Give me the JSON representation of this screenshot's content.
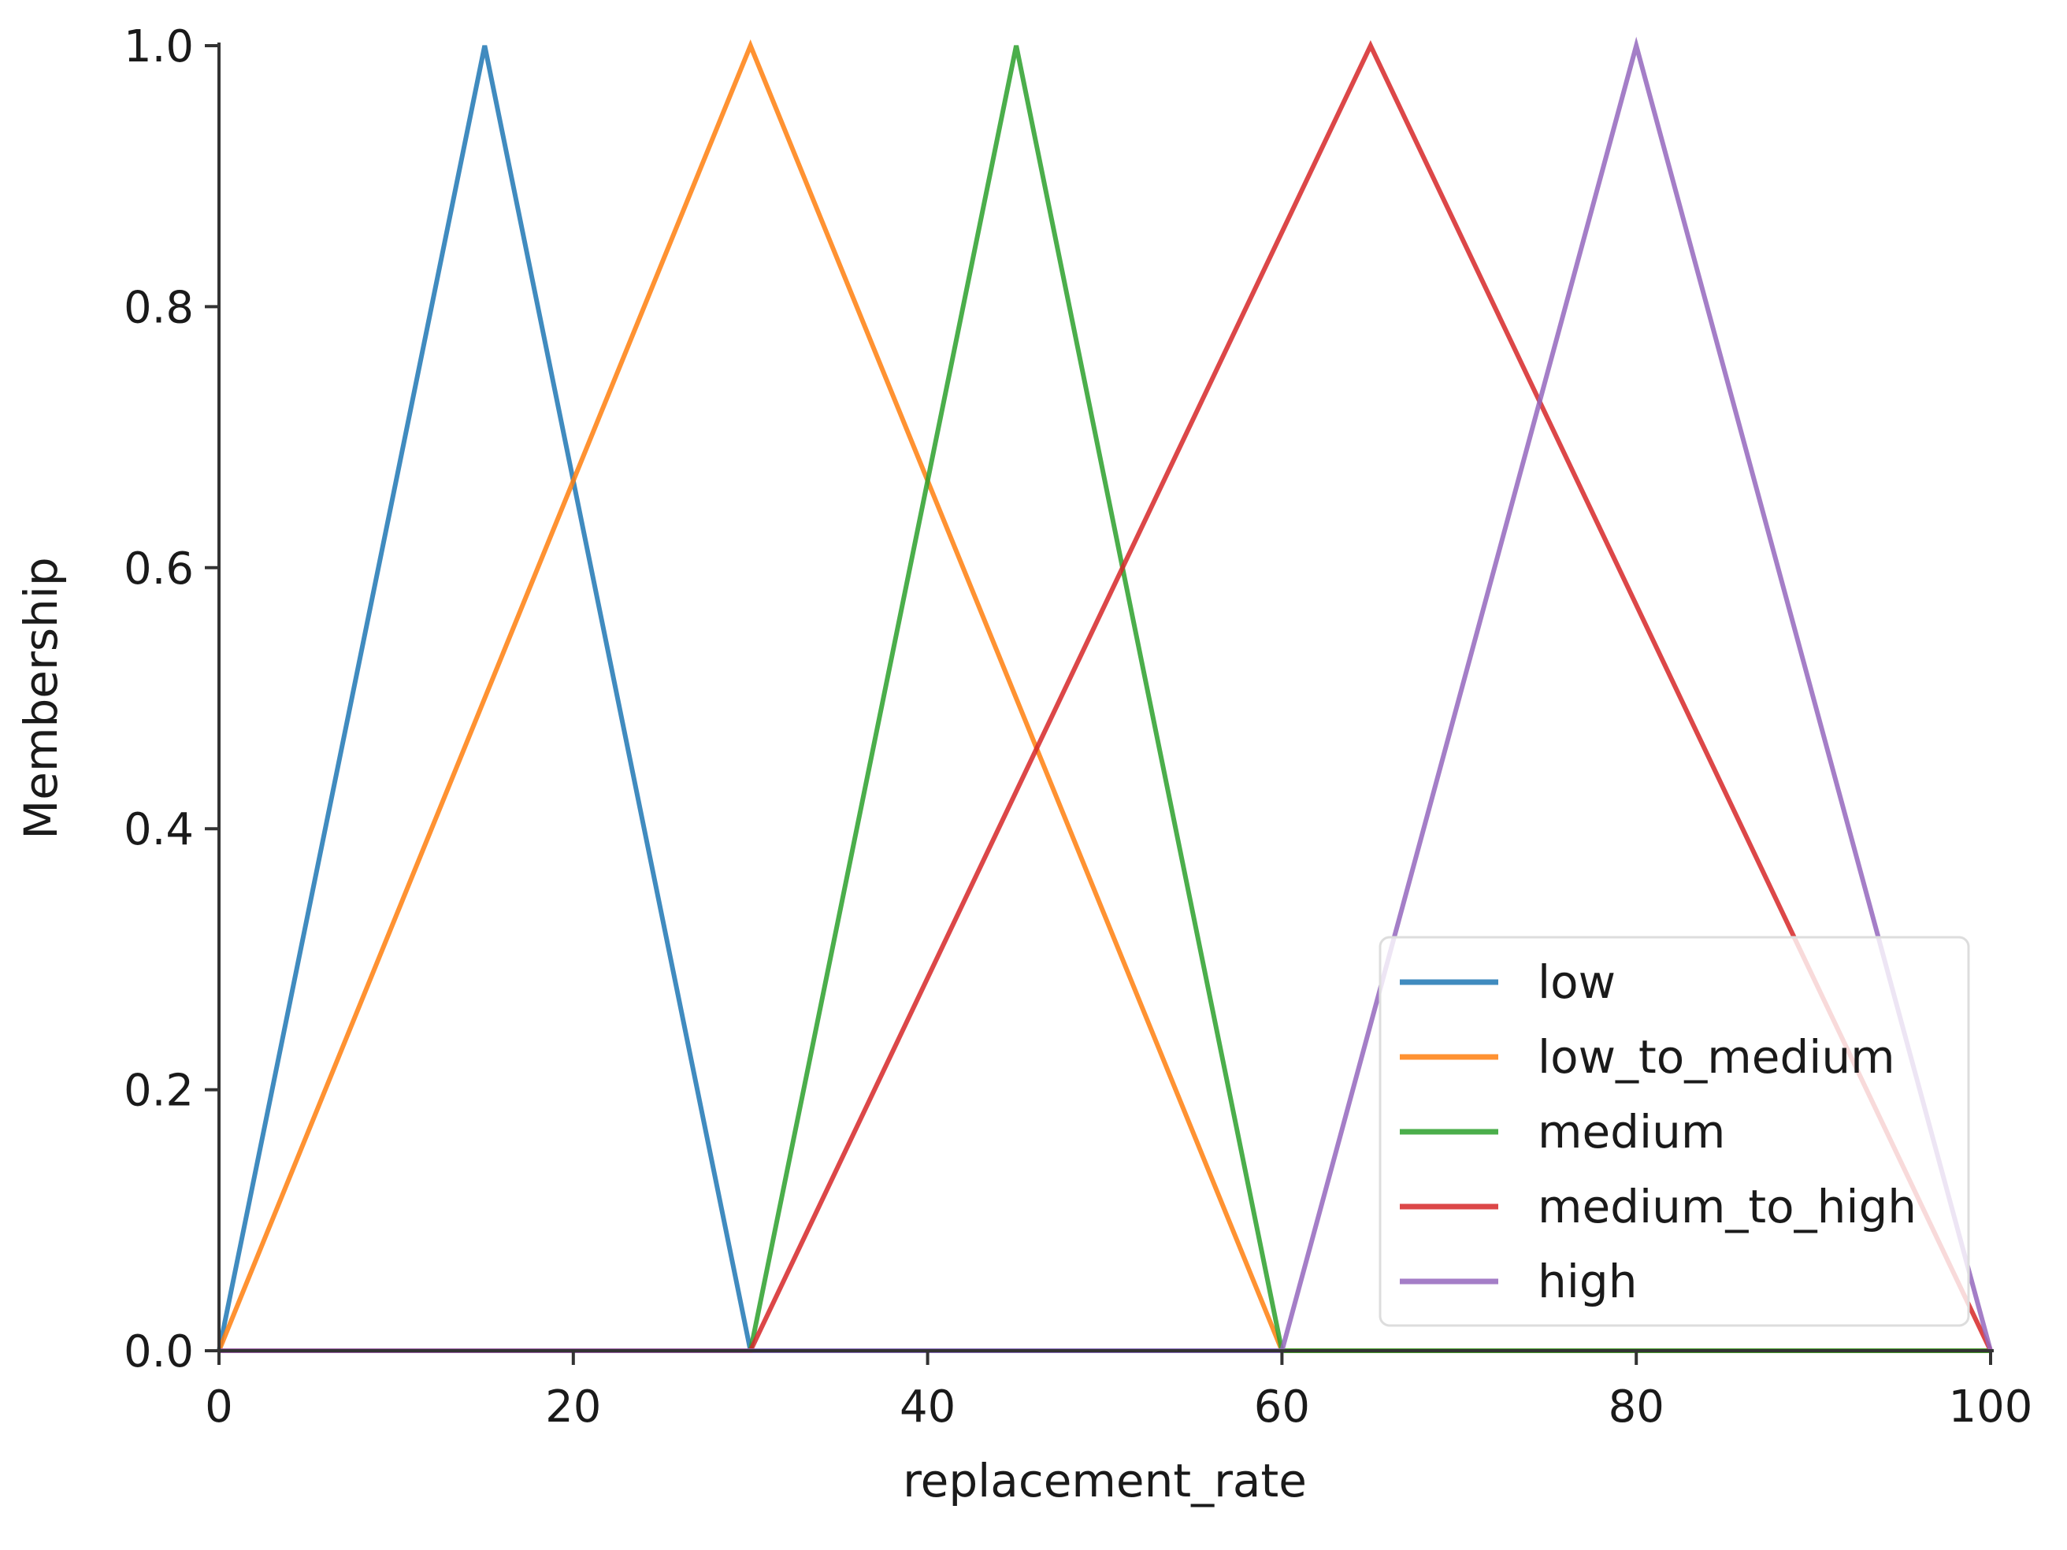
{
  "chart_data": {
    "type": "line",
    "title": "",
    "xlabel": "replacement_rate",
    "ylabel": "Membership",
    "xlim": [
      0,
      100
    ],
    "ylim": [
      0,
      1.0
    ],
    "x_ticks": [
      0,
      20,
      40,
      60,
      80,
      100
    ],
    "x_tick_labels": [
      "0",
      "20",
      "40",
      "60",
      "80",
      "100"
    ],
    "y_ticks": [
      0,
      0.2,
      0.4,
      0.6,
      0.8,
      1.0
    ],
    "y_tick_labels": [
      "0.0",
      "0.2",
      "0.4",
      "0.6",
      "0.8",
      "1.0"
    ],
    "grid": false,
    "legend_position": "lower-right",
    "series": [
      {
        "name": "low",
        "color": "#1f77b4",
        "points": [
          [
            0,
            0
          ],
          [
            15,
            1.0
          ],
          [
            30,
            0
          ],
          [
            100,
            0
          ]
        ]
      },
      {
        "name": "low_to_medium",
        "color": "#ff7f0e",
        "points": [
          [
            0,
            0
          ],
          [
            30,
            1.0
          ],
          [
            60,
            0
          ],
          [
            100,
            0
          ]
        ]
      },
      {
        "name": "medium",
        "color": "#2ca02c",
        "points": [
          [
            0,
            0
          ],
          [
            30,
            0
          ],
          [
            45,
            1.0
          ],
          [
            60,
            0
          ],
          [
            100,
            0
          ]
        ]
      },
      {
        "name": "medium_to_high",
        "color": "#d62728",
        "points": [
          [
            0,
            0
          ],
          [
            30,
            0
          ],
          [
            65,
            1.0
          ],
          [
            100,
            0
          ]
        ]
      },
      {
        "name": "high",
        "color": "#9467bd",
        "points": [
          [
            0,
            0
          ],
          [
            60,
            0
          ],
          [
            80,
            1.0
          ],
          [
            100,
            0
          ]
        ]
      }
    ]
  }
}
